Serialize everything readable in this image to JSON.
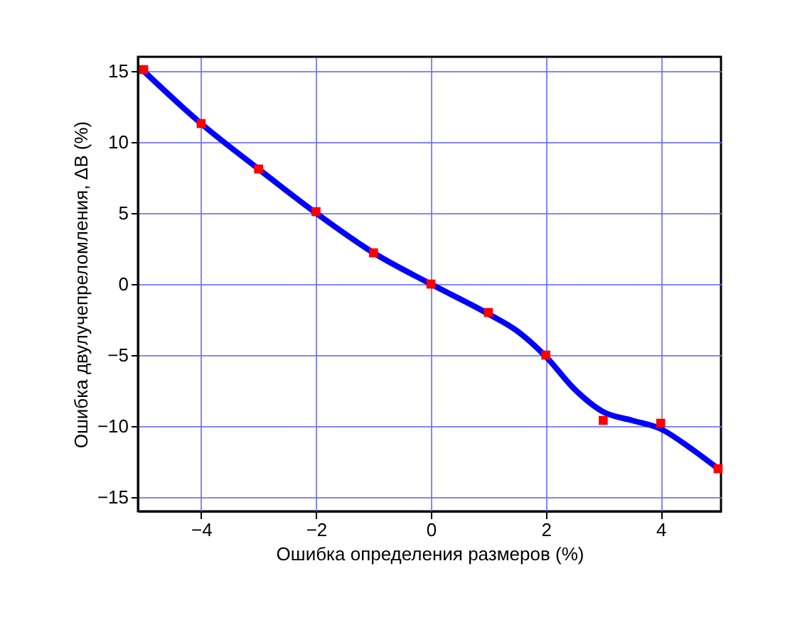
{
  "chart_data": {
    "type": "scatter",
    "xlabel": "Ошибка определения размеров (%)",
    "ylabel": "Ошибка двулучепреломления, ΔB (%)",
    "xlim": [
      -5.1,
      5.05
    ],
    "ylim": [
      -16,
      16
    ],
    "xticks": [
      -4,
      -2,
      0,
      2,
      4
    ],
    "yticks": [
      -15,
      -10,
      -5,
      0,
      5,
      10,
      15
    ],
    "grid": true,
    "series": [
      {
        "type": "line",
        "color": "#0000ff",
        "line_style": "solid",
        "marker": "none",
        "x": [
          -5,
          -4,
          -3,
          -2,
          -1,
          0,
          1,
          1.5,
          2,
          2.5,
          3,
          3.5,
          4,
          4.5,
          5
        ],
        "values": [
          15,
          11.3,
          8.1,
          5.0,
          2.2,
          0,
          -2.1,
          -3.3,
          -5.1,
          -7.4,
          -9.0,
          -9.6,
          -10.2,
          -11.5,
          -13
        ]
      },
      {
        "color": "#ff0000",
        "marker": "square",
        "x": [
          -5,
          -4,
          -3,
          -2,
          -1,
          0,
          1,
          2,
          3,
          4,
          5
        ],
        "values": [
          15.1,
          11.3,
          8.1,
          5.1,
          2.2,
          0,
          -2,
          -5,
          -9.6,
          -9.8,
          -13
        ]
      }
    ]
  }
}
